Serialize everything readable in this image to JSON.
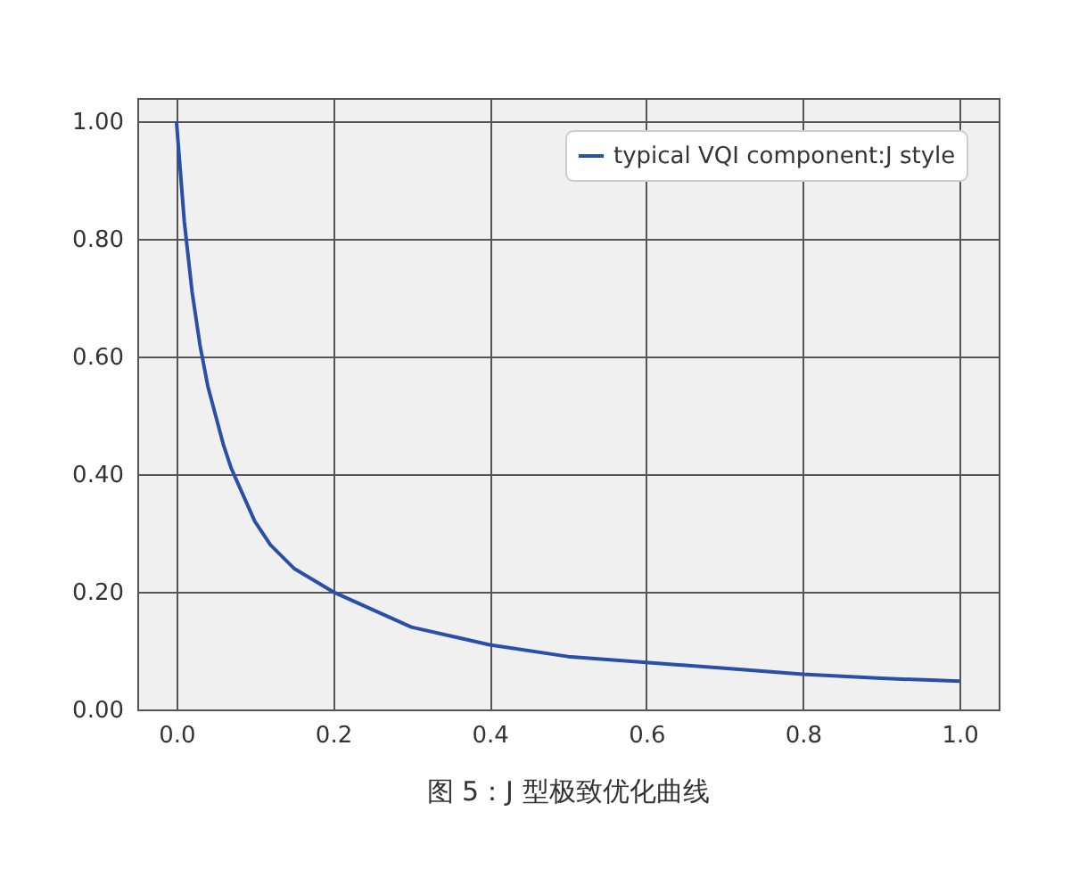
{
  "chart_data": {
    "type": "line",
    "x": [
      0,
      0.01,
      0.02,
      0.03,
      0.04,
      0.05,
      0.06,
      0.07,
      0.08,
      0.1,
      0.12,
      0.15,
      0.2,
      0.25,
      0.3,
      0.4,
      0.5,
      0.6,
      0.7,
      0.8,
      0.9,
      1.0
    ],
    "series": [
      {
        "name": "typical VQI component:J style",
        "color": "#2a4fa8",
        "values": [
          1.0,
          0.83,
          0.71,
          0.62,
          0.55,
          0.5,
          0.45,
          0.41,
          0.38,
          0.32,
          0.28,
          0.24,
          0.2,
          0.17,
          0.14,
          0.11,
          0.09,
          0.08,
          0.07,
          0.06,
          0.053,
          0.048
        ]
      }
    ],
    "xlim": [
      -0.05,
      1.05
    ],
    "xticks": [
      {
        "value": 0,
        "label": "0.0"
      },
      0.2,
      0.4,
      0.6,
      0.8,
      {
        "value": 1,
        "label": "1.0"
      }
    ],
    "ylim": [
      0,
      1.04
    ],
    "yticks": [
      {
        "value": 0,
        "label": "0.00"
      },
      {
        "value": 0.2,
        "label": "0.20"
      },
      {
        "value": 0.4,
        "label": "0.40"
      },
      {
        "value": 0.6,
        "label": "0.60"
      },
      {
        "value": 0.8,
        "label": "0.80"
      },
      {
        "value": 1,
        "label": "1.00"
      }
    ],
    "grid": true,
    "legend": "top right",
    "marker": "none",
    "line_style": "solid",
    "annotations": [
      "图 5：J 型极致优化曲线"
    ]
  }
}
